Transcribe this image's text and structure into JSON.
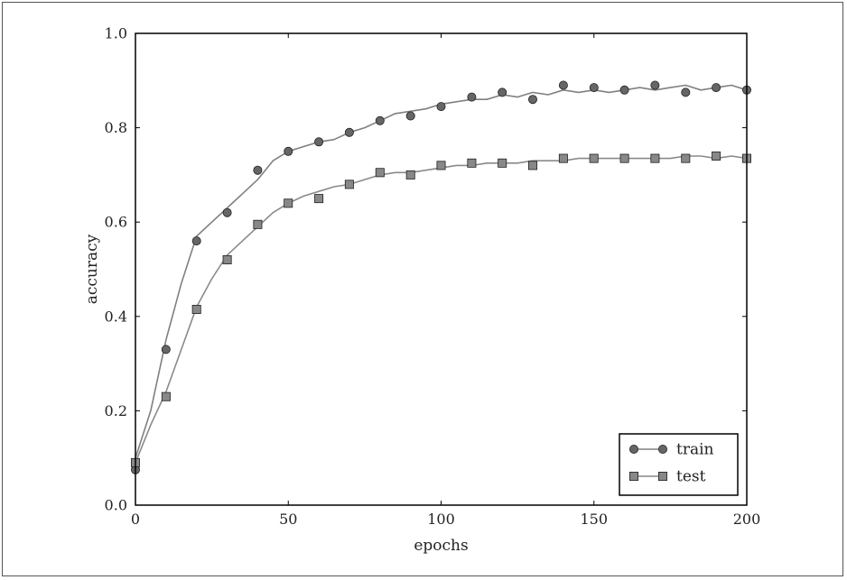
{
  "chart_data": {
    "type": "line",
    "title": "",
    "xlabel": "epochs",
    "ylabel": "accuracy",
    "xlim": [
      0,
      200
    ],
    "ylim": [
      0.0,
      1.0
    ],
    "xticks": [
      0,
      50,
      100,
      150,
      200
    ],
    "xtick_labels": [
      "0",
      "50",
      "100",
      "150",
      "200"
    ],
    "yticks": [
      0.0,
      0.2,
      0.4,
      0.6,
      0.8,
      1.0
    ],
    "ytick_labels": [
      "0.0",
      "0.2",
      "0.4",
      "0.6",
      "0.8",
      "1.0"
    ],
    "grid": false,
    "legend_position": "bottom-right",
    "series": [
      {
        "name": "train",
        "marker": "circle",
        "color": "#666666",
        "line_color": "#808080",
        "marker_x": [
          0,
          10,
          20,
          30,
          40,
          50,
          60,
          70,
          80,
          90,
          100,
          110,
          120,
          130,
          140,
          150,
          160,
          170,
          180,
          190,
          200
        ],
        "marker_y": [
          0.075,
          0.33,
          0.56,
          0.62,
          0.71,
          0.75,
          0.77,
          0.79,
          0.815,
          0.825,
          0.845,
          0.865,
          0.875,
          0.86,
          0.89,
          0.885,
          0.88,
          0.89,
          0.875,
          0.885,
          0.88
        ],
        "x": [
          0,
          5,
          10,
          15,
          20,
          25,
          30,
          35,
          40,
          45,
          50,
          55,
          60,
          65,
          70,
          75,
          80,
          85,
          90,
          95,
          100,
          105,
          110,
          115,
          120,
          125,
          130,
          135,
          140,
          145,
          150,
          155,
          160,
          165,
          170,
          175,
          180,
          185,
          190,
          195,
          200
        ],
        "values": [
          0.1,
          0.2,
          0.35,
          0.47,
          0.57,
          0.6,
          0.63,
          0.66,
          0.69,
          0.73,
          0.75,
          0.76,
          0.77,
          0.775,
          0.79,
          0.8,
          0.815,
          0.83,
          0.835,
          0.84,
          0.85,
          0.855,
          0.86,
          0.86,
          0.87,
          0.865,
          0.875,
          0.87,
          0.88,
          0.875,
          0.88,
          0.875,
          0.88,
          0.885,
          0.88,
          0.885,
          0.89,
          0.88,
          0.885,
          0.89,
          0.88
        ]
      },
      {
        "name": "test",
        "marker": "square",
        "color": "#888888",
        "line_color": "#8a8a8a",
        "marker_x": [
          0,
          10,
          20,
          30,
          40,
          50,
          60,
          70,
          80,
          90,
          100,
          110,
          120,
          130,
          140,
          150,
          160,
          170,
          180,
          190,
          200
        ],
        "marker_y": [
          0.09,
          0.23,
          0.415,
          0.52,
          0.595,
          0.64,
          0.65,
          0.68,
          0.705,
          0.7,
          0.72,
          0.725,
          0.725,
          0.72,
          0.735,
          0.735,
          0.735,
          0.735,
          0.735,
          0.74,
          0.735
        ],
        "x": [
          0,
          5,
          10,
          15,
          20,
          25,
          30,
          35,
          40,
          45,
          50,
          55,
          60,
          65,
          70,
          75,
          80,
          85,
          90,
          95,
          100,
          105,
          110,
          115,
          120,
          125,
          130,
          135,
          140,
          145,
          150,
          155,
          160,
          165,
          170,
          175,
          180,
          185,
          190,
          195,
          200
        ],
        "values": [
          0.09,
          0.17,
          0.24,
          0.33,
          0.42,
          0.48,
          0.53,
          0.56,
          0.59,
          0.62,
          0.64,
          0.655,
          0.665,
          0.675,
          0.68,
          0.69,
          0.7,
          0.705,
          0.705,
          0.71,
          0.715,
          0.72,
          0.72,
          0.725,
          0.725,
          0.725,
          0.73,
          0.73,
          0.73,
          0.735,
          0.735,
          0.735,
          0.735,
          0.735,
          0.735,
          0.735,
          0.74,
          0.74,
          0.735,
          0.74,
          0.735
        ]
      }
    ]
  }
}
